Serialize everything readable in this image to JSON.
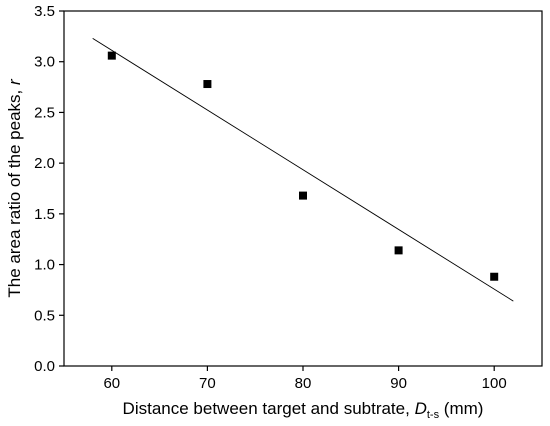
{
  "chart_data": {
    "type": "scatter",
    "xlabel": {
      "main": "Distance between target and subtrate, ",
      "var": "D",
      "sub": "t-s",
      "unit": " (mm)"
    },
    "ylabel": {
      "main": "The area ratio of the peaks, ",
      "var": "r"
    },
    "xlim": [
      55,
      105
    ],
    "ylim": [
      0,
      3.5
    ],
    "xticks": [
      60,
      70,
      80,
      90,
      100
    ],
    "yticks": [
      0.0,
      0.5,
      1.0,
      1.5,
      2.0,
      2.5,
      3.0,
      3.5
    ],
    "xtick_labels": [
      "60",
      "70",
      "80",
      "90",
      "100"
    ],
    "ytick_labels": [
      "0.0",
      "0.5",
      "1.0",
      "1.5",
      "2.0",
      "2.5",
      "3.0",
      "3.5"
    ],
    "points": [
      {
        "x": 60,
        "y": 3.06
      },
      {
        "x": 70,
        "y": 2.78
      },
      {
        "x": 80,
        "y": 1.68
      },
      {
        "x": 90,
        "y": 1.14
      },
      {
        "x": 100,
        "y": 0.88
      }
    ],
    "fit_line": {
      "x": [
        58,
        102
      ],
      "y": [
        3.23,
        0.64
      ]
    },
    "grid": false,
    "legend": "none"
  }
}
